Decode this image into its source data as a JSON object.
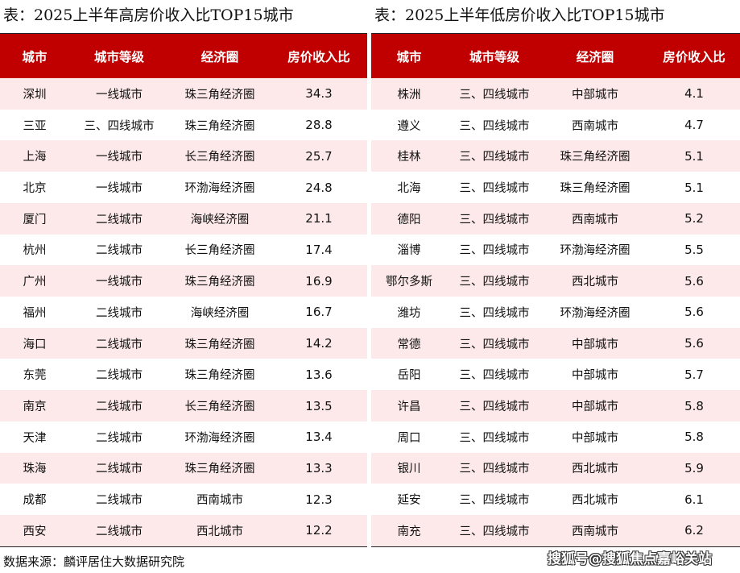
{
  "left": {
    "title": "表：2025上半年高房价收入比TOP15城市",
    "headers": [
      "城市",
      "城市等级",
      "经济圈",
      "房价收入比"
    ],
    "rows": [
      [
        "深圳",
        "一线城市",
        "珠三角经济圈",
        "34.3"
      ],
      [
        "三亚",
        "三、四线城市",
        "珠三角经济圈",
        "28.8"
      ],
      [
        "上海",
        "一线城市",
        "长三角经济圈",
        "25.7"
      ],
      [
        "北京",
        "一线城市",
        "环渤海经济圈",
        "24.8"
      ],
      [
        "厦门",
        "二线城市",
        "海峡经济圈",
        "21.1"
      ],
      [
        "杭州",
        "二线城市",
        "长三角经济圈",
        "17.4"
      ],
      [
        "广州",
        "一线城市",
        "珠三角经济圈",
        "16.9"
      ],
      [
        "福州",
        "二线城市",
        "海峡经济圈",
        "16.7"
      ],
      [
        "海口",
        "二线城市",
        "珠三角经济圈",
        "14.2"
      ],
      [
        "东莞",
        "二线城市",
        "珠三角经济圈",
        "13.6"
      ],
      [
        "南京",
        "二线城市",
        "长三角经济圈",
        "13.5"
      ],
      [
        "天津",
        "二线城市",
        "环渤海经济圈",
        "13.4"
      ],
      [
        "珠海",
        "二线城市",
        "珠三角经济圈",
        "13.3"
      ],
      [
        "成都",
        "二线城市",
        "西南城市",
        "12.3"
      ],
      [
        "西安",
        "二线城市",
        "西北城市",
        "12.2"
      ]
    ]
  },
  "right": {
    "title": "表：2025上半年低房价收入比TOP15城市",
    "headers": [
      "城市",
      "城市等级",
      "经济圈",
      "房价收入比"
    ],
    "rows": [
      [
        "株洲",
        "三、四线城市",
        "中部城市",
        "4.1"
      ],
      [
        "遵义",
        "三、四线城市",
        "西南城市",
        "4.7"
      ],
      [
        "桂林",
        "三、四线城市",
        "珠三角经济圈",
        "5.1"
      ],
      [
        "北海",
        "三、四线城市",
        "珠三角经济圈",
        "5.1"
      ],
      [
        "德阳",
        "三、四线城市",
        "西南城市",
        "5.2"
      ],
      [
        "淄博",
        "三、四线城市",
        "环渤海经济圈",
        "5.5"
      ],
      [
        "鄂尔多斯",
        "三、四线城市",
        "西北城市",
        "5.6"
      ],
      [
        "潍坊",
        "三、四线城市",
        "环渤海经济圈",
        "5.6"
      ],
      [
        "常德",
        "三、四线城市",
        "中部城市",
        "5.6"
      ],
      [
        "岳阳",
        "三、四线城市",
        "中部城市",
        "5.7"
      ],
      [
        "许昌",
        "三、四线城市",
        "中部城市",
        "5.8"
      ],
      [
        "周口",
        "三、四线城市",
        "中部城市",
        "5.8"
      ],
      [
        "银川",
        "三、四线城市",
        "西北城市",
        "5.9"
      ],
      [
        "延安",
        "三、四线城市",
        "西北城市",
        "6.1"
      ],
      [
        "南充",
        "三、四线城市",
        "西南城市",
        "6.2"
      ]
    ]
  },
  "source": "数据来源：麟评居住大数据研究院",
  "watermark": "搜狐号@搜狐焦点嘉峪关站",
  "colors": {
    "header": "#c00000",
    "stripe": "#fde9e9"
  }
}
